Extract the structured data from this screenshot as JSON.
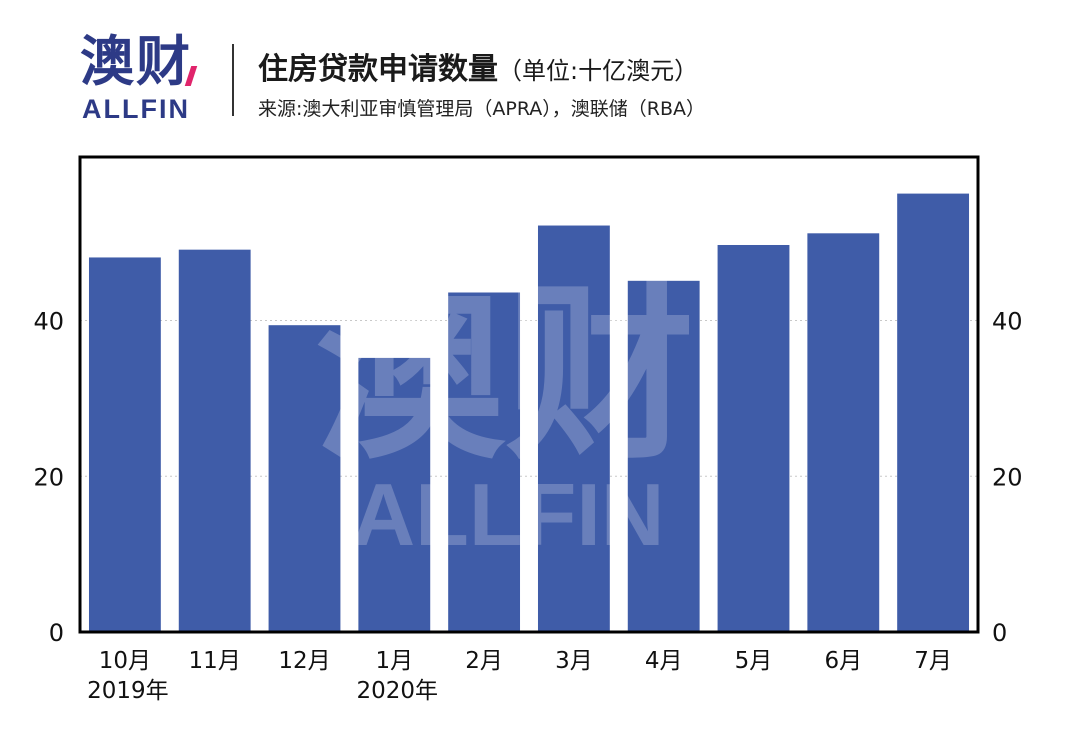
{
  "header": {
    "logo_cn": "澳财",
    "logo_en": "ALLFIN",
    "title": "住房贷款申请数量",
    "unit": "（单位:十亿澳元）",
    "source": "来源:澳大利亚审慎管理局（APRA），澳联储（RBA）"
  },
  "watermark": {
    "cn": "澳财",
    "en": "ALLFIN"
  },
  "colors": {
    "bar": "#3f5ca8",
    "brand": "#2d3a86",
    "accent": "#e0246b",
    "frame": "#000000"
  },
  "chart_data": {
    "type": "bar",
    "title": "住房贷款申请数量",
    "categories": [
      "10月",
      "11月",
      "12月",
      "1月",
      "2月",
      "3月",
      "4月",
      "5月",
      "6月",
      "7月"
    ],
    "year_labels": [
      {
        "category_index": 0,
        "text": "2019年"
      },
      {
        "category_index": 3,
        "text": "2020年"
      }
    ],
    "values": [
      48.1,
      49.1,
      39.4,
      35.2,
      43.6,
      52.2,
      45.1,
      49.7,
      51.2,
      56.3
    ],
    "ylim": [
      0,
      61
    ],
    "yticks": [
      0,
      20,
      40
    ],
    "grid": true,
    "y_axis_both_sides": true,
    "xlabel": "",
    "ylabel": ""
  }
}
